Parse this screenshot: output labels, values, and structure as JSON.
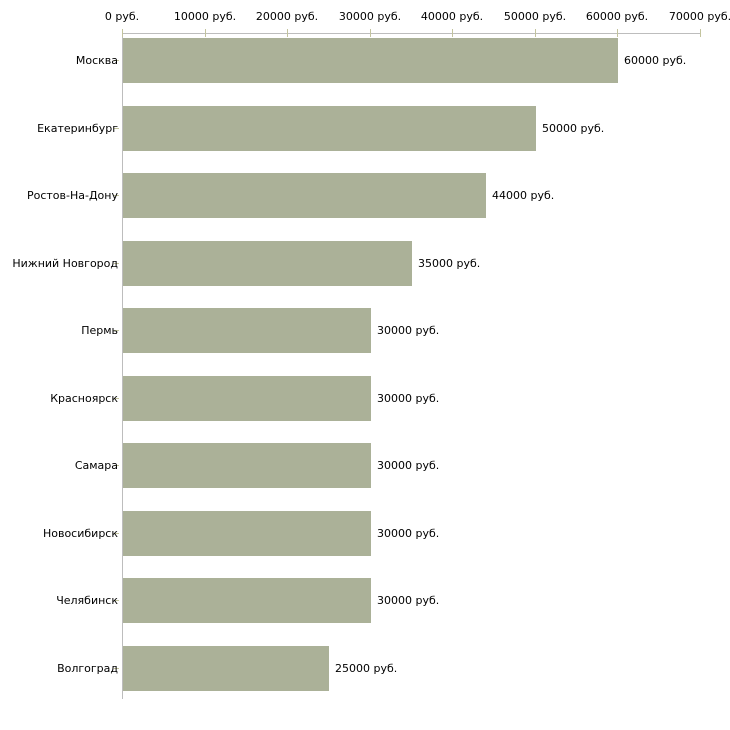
{
  "chart_data": {
    "type": "bar",
    "orientation": "horizontal",
    "title": "",
    "xlabel": "",
    "ylabel": "",
    "unit": "руб.",
    "categories": [
      "Москва",
      "Екатеринбург",
      "Ростов-На-Дону",
      "Нижний Новгород",
      "Пермь",
      "Красноярск",
      "Самара",
      "Новосибирск",
      "Челябинск",
      "Волгоград"
    ],
    "values": [
      60000,
      50000,
      44000,
      35000,
      30000,
      30000,
      30000,
      30000,
      30000,
      25000
    ],
    "value_labels": [
      "60000 руб.",
      "50000 руб.",
      "44000 руб.",
      "35000 руб.",
      "30000 руб.",
      "30000 руб.",
      "30000 руб.",
      "30000 руб.",
      "30000 руб.",
      "25000 руб."
    ],
    "x_tick_values": [
      0,
      10000,
      20000,
      30000,
      40000,
      50000,
      60000,
      70000
    ],
    "x_tick_labels": [
      "0 руб.",
      "10000 руб.",
      "20000 руб.",
      "30000 руб.",
      "40000 руб.",
      "50000 руб.",
      "60000 руб.",
      "70000 руб."
    ],
    "xlim": [
      0,
      70000
    ],
    "grid": false,
    "legend": false,
    "colors": {
      "bar": "#abb198",
      "axis": "#bdbdbd",
      "tick": "#c3c49e",
      "text": "#000000",
      "background": "#ffffff"
    }
  }
}
